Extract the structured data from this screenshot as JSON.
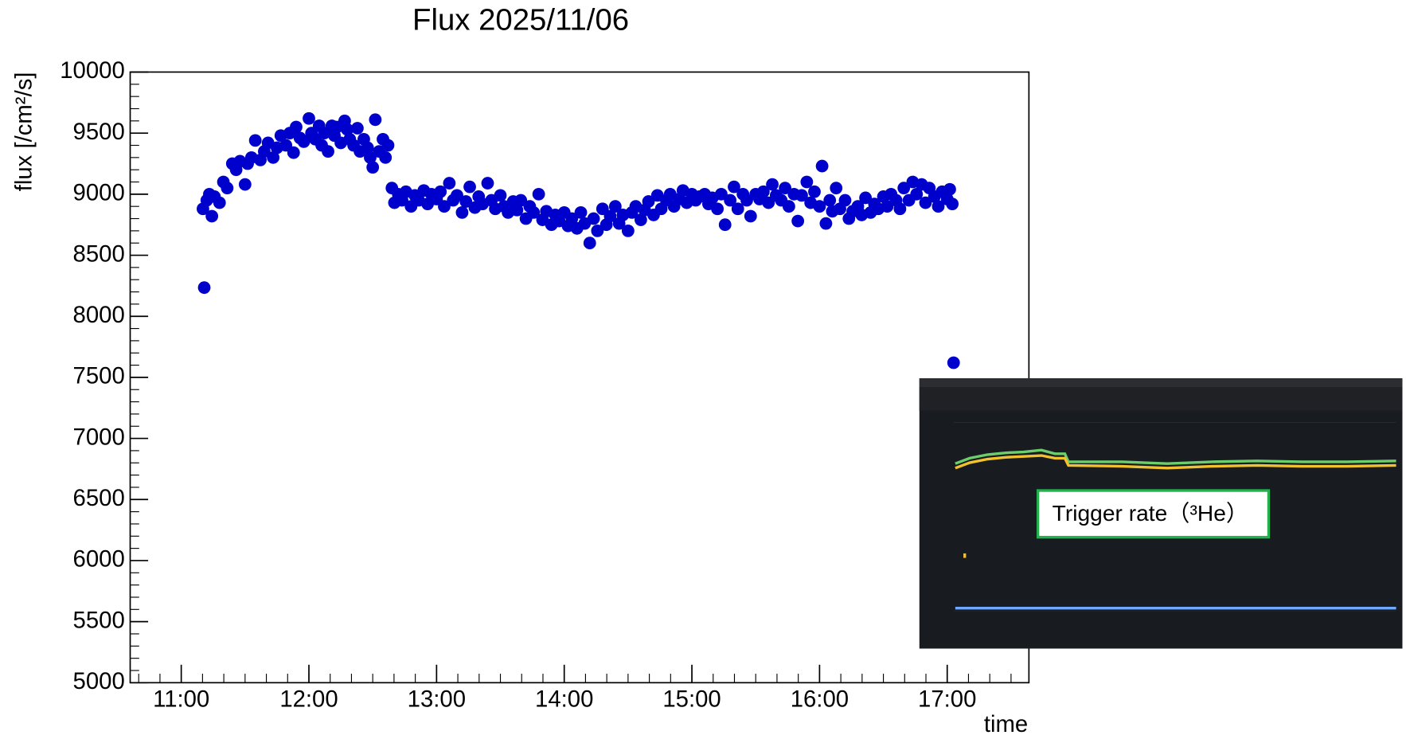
{
  "chart_data": {
    "type": "scatter",
    "title": "Flux 2025/11/06",
    "x_label": "time",
    "y_label": "flux [/cm²/s]",
    "annotation": "Trigger rate（³He）",
    "color": "#0000cc",
    "xlim": [
      10.6,
      17.64
    ],
    "ylim": [
      5000,
      10000
    ],
    "xticks": [
      {
        "value": 11,
        "label": "11:00"
      },
      {
        "value": 12,
        "label": "12:00"
      },
      {
        "value": 13,
        "label": "13:00"
      },
      {
        "value": 14,
        "label": "14:00"
      },
      {
        "value": 15,
        "label": "15:00"
      },
      {
        "value": 16,
        "label": "16:00"
      },
      {
        "value": 17,
        "label": "17:00"
      }
    ],
    "yticks": [
      5000,
      5500,
      6000,
      6500,
      7000,
      7500,
      8000,
      8500,
      9000,
      9500,
      10000
    ],
    "x": [
      11.18,
      11.17,
      11.2,
      11.22,
      11.24,
      11.26,
      11.3,
      11.33,
      11.36,
      11.4,
      11.43,
      11.46,
      11.5,
      11.52,
      11.55,
      11.58,
      11.62,
      11.65,
      11.68,
      11.72,
      11.75,
      11.78,
      11.82,
      11.85,
      11.88,
      11.9,
      11.93,
      11.96,
      12.0,
      12.02,
      12.05,
      12.08,
      12.1,
      12.12,
      12.15,
      12.18,
      12.2,
      12.22,
      12.25,
      12.28,
      12.3,
      12.32,
      12.35,
      12.38,
      12.4,
      12.43,
      12.46,
      12.48,
      12.5,
      12.52,
      12.55,
      12.58,
      12.6,
      12.62,
      12.65,
      12.67,
      12.7,
      12.73,
      12.76,
      12.8,
      12.83,
      12.86,
      12.9,
      12.93,
      12.96,
      13.0,
      13.03,
      13.06,
      13.1,
      13.13,
      13.16,
      13.2,
      13.23,
      13.26,
      13.3,
      13.33,
      13.36,
      13.4,
      13.43,
      13.46,
      13.5,
      13.53,
      13.56,
      13.6,
      13.63,
      13.66,
      13.7,
      13.73,
      13.76,
      13.8,
      13.83,
      13.86,
      13.9,
      13.93,
      13.96,
      14.0,
      14.03,
      14.06,
      14.1,
      14.13,
      14.16,
      14.2,
      14.23,
      14.26,
      14.3,
      14.33,
      14.36,
      14.4,
      14.43,
      14.46,
      14.5,
      14.53,
      14.56,
      14.6,
      14.63,
      14.66,
      14.7,
      14.73,
      14.76,
      14.8,
      14.83,
      14.86,
      14.9,
      14.93,
      14.96,
      15.0,
      15.03,
      15.06,
      15.1,
      15.13,
      15.16,
      15.2,
      15.23,
      15.26,
      15.3,
      15.33,
      15.36,
      15.4,
      15.43,
      15.46,
      15.5,
      15.53,
      15.56,
      15.6,
      15.63,
      15.66,
      15.7,
      15.73,
      15.76,
      15.8,
      15.83,
      15.86,
      15.9,
      15.93,
      15.96,
      16.0,
      16.02,
      16.05,
      16.08,
      16.1,
      16.13,
      16.16,
      16.2,
      16.23,
      16.26,
      16.3,
      16.33,
      16.36,
      16.4,
      16.43,
      16.46,
      16.5,
      16.53,
      16.56,
      16.6,
      16.63,
      16.66,
      16.7,
      16.73,
      16.76,
      16.8,
      16.83,
      16.86,
      16.9,
      16.93,
      16.96,
      17.0,
      17.02,
      17.04,
      17.05
    ],
    "values": [
      8235,
      8880,
      8950,
      9000,
      8820,
      8980,
      8930,
      9100,
      9050,
      9250,
      9200,
      9270,
      9080,
      9250,
      9300,
      9440,
      9280,
      9350,
      9420,
      9300,
      9380,
      9480,
      9400,
      9500,
      9340,
      9550,
      9460,
      9430,
      9620,
      9500,
      9450,
      9560,
      9400,
      9500,
      9350,
      9560,
      9480,
      9550,
      9420,
      9600,
      9530,
      9450,
      9400,
      9540,
      9350,
      9450,
      9380,
      9300,
      9220,
      9610,
      9350,
      9450,
      9300,
      9400,
      9050,
      8930,
      9000,
      8950,
      9020,
      8900,
      8990,
      8950,
      9030,
      8920,
      9000,
      8960,
      9020,
      8900,
      9090,
      8950,
      8990,
      8850,
      8940,
      9060,
      8890,
      8980,
      8920,
      9090,
      8950,
      8880,
      8990,
      8900,
      8850,
      8940,
      8870,
      8950,
      8800,
      8900,
      8850,
      9000,
      8790,
      8860,
      8750,
      8830,
      8780,
      8850,
      8740,
      8800,
      8720,
      8850,
      8760,
      8600,
      8800,
      8700,
      8880,
      8750,
      8820,
      8900,
      8760,
      8830,
      8700,
      8850,
      8900,
      8790,
      8870,
      8940,
      8830,
      8990,
      8880,
      8950,
      9000,
      8900,
      8960,
      9030,
      8930,
      9000,
      8950,
      8980,
      9000,
      8920,
      8970,
      8880,
      9000,
      8750,
      8950,
      9060,
      8880,
      9000,
      8950,
      8820,
      9000,
      8960,
      9020,
      8930,
      9080,
      8990,
      8950,
      9050,
      8900,
      9000,
      8780,
      8990,
      9100,
      8930,
      9020,
      8900,
      9230,
      8760,
      8950,
      8860,
      9050,
      8880,
      8950,
      8800,
      8860,
      8900,
      8830,
      8970,
      8850,
      8920,
      8880,
      8980,
      8900,
      9000,
      8950,
      8880,
      9050,
      8950,
      9100,
      9000,
      9080,
      8930,
      9050,
      8980,
      8900,
      9020,
      8960,
      9040,
      8920,
      7620
    ]
  }
}
